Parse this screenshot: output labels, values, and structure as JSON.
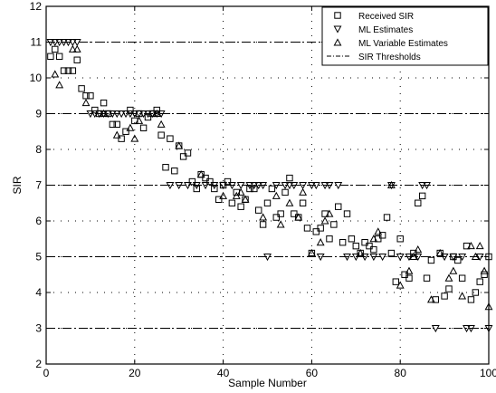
{
  "chart_data": {
    "type": "scatter",
    "xlabel": "Sample Number",
    "ylabel": "SIR",
    "xlim": [
      0,
      100
    ],
    "ylim": [
      2,
      12
    ],
    "xticks": [
      0,
      20,
      40,
      60,
      80,
      100
    ],
    "yticks": [
      2,
      3,
      4,
      5,
      6,
      7,
      8,
      9,
      10,
      11,
      12
    ],
    "grid": "dotted",
    "legend_position": "top-right",
    "legend": [
      {
        "label": "Received SIR",
        "marker": "square"
      },
      {
        "label": "ML Estimates",
        "marker": "triangle-down"
      },
      {
        "label": "ML Variable Estimates",
        "marker": "triangle-up"
      },
      {
        "label": "SIR Thresholds",
        "marker": "dashdot-line"
      }
    ],
    "thresholds": [
      3,
      5,
      7,
      9,
      11
    ],
    "series": [
      {
        "name": "Received SIR",
        "marker": "square",
        "x": [
          1,
          2,
          3,
          4,
          5,
          6,
          7,
          8,
          9,
          10,
          11,
          12,
          13,
          14,
          15,
          16,
          17,
          18,
          19,
          20,
          21,
          22,
          23,
          24,
          25,
          26,
          27,
          28,
          29,
          30,
          31,
          32,
          33,
          34,
          35,
          36,
          37,
          38,
          39,
          40,
          41,
          42,
          43,
          44,
          45,
          46,
          47,
          48,
          49,
          50,
          51,
          52,
          53,
          54,
          55,
          56,
          57,
          58,
          59,
          60,
          61,
          62,
          63,
          64,
          65,
          66,
          67,
          68,
          69,
          70,
          71,
          72,
          73,
          74,
          75,
          76,
          77,
          78,
          79,
          80,
          81,
          82,
          83,
          84,
          85,
          86,
          87,
          88,
          89,
          90,
          91,
          92,
          93,
          94,
          95,
          96,
          97,
          98,
          99,
          100
        ],
        "y": [
          10.6,
          10.8,
          10.6,
          10.2,
          10.2,
          10.2,
          10.5,
          9.7,
          9.5,
          9.5,
          9.1,
          9,
          9.3,
          9,
          8.7,
          8.7,
          8.3,
          8.5,
          9.1,
          8.8,
          9,
          8.6,
          8.9,
          9,
          9.1,
          8.4,
          7.5,
          8.3,
          7.4,
          8.1,
          7.8,
          7.9,
          7.1,
          6.9,
          7.3,
          7.2,
          7.1,
          6.9,
          6.6,
          7,
          7.1,
          6.5,
          6.8,
          6.4,
          6.6,
          6.9,
          6.9,
          6.3,
          5.9,
          6.5,
          6.9,
          6.1,
          6.2,
          6.8,
          7.2,
          6.2,
          6.1,
          6.5,
          5.8,
          5.1,
          5.7,
          5.8,
          6.2,
          5.5,
          5.9,
          6.4,
          5.4,
          6.2,
          5.5,
          5.3,
          5.1,
          5.4,
          5.3,
          5.2,
          5.5,
          5.6,
          6.1,
          5.1,
          4.3,
          5.5,
          4.5,
          4.4,
          5.1,
          6.5,
          6.7,
          4.4,
          4.9,
          3.8,
          5.1,
          3.9,
          4.1,
          5,
          4.9,
          4.4,
          5.3,
          3.8,
          4,
          4.3,
          4.5,
          5
        ]
      },
      {
        "name": "ML Estimates",
        "marker": "triangle-down",
        "x": [
          1,
          2,
          3,
          4,
          5,
          6,
          7,
          10,
          11,
          12,
          13,
          14,
          15,
          16,
          17,
          18,
          19,
          20,
          21,
          22,
          23,
          24,
          25,
          26,
          28,
          30,
          32,
          34,
          36,
          38,
          40,
          42,
          44,
          46,
          47,
          48,
          49,
          50,
          52,
          54,
          55,
          56,
          58,
          60,
          61,
          62,
          63,
          64,
          66,
          68,
          70,
          72,
          74,
          76,
          78,
          80,
          82,
          84,
          85,
          86,
          88,
          90,
          92,
          94,
          95,
          96,
          98,
          100
        ],
        "y": [
          11,
          11,
          11,
          11,
          11,
          11,
          11,
          9,
          9,
          9,
          9,
          9,
          9,
          9,
          9,
          9,
          9,
          9,
          9,
          9,
          9,
          9,
          9,
          9,
          7,
          7,
          7,
          7,
          7,
          7,
          7,
          7,
          7,
          7,
          7,
          7,
          7,
          5,
          7,
          7,
          7,
          7,
          7,
          7,
          7,
          5,
          7,
          7,
          7,
          5,
          5,
          5,
          5,
          5,
          7,
          5,
          5,
          5,
          7,
          7,
          3,
          5,
          5,
          5,
          3,
          3,
          5,
          3
        ]
      },
      {
        "name": "ML Variable Estimates",
        "marker": "triangle-up",
        "x": [
          2,
          3,
          6,
          7,
          9,
          13,
          16,
          19,
          20,
          21,
          25,
          26,
          30,
          35,
          40,
          43,
          44,
          45,
          49,
          52,
          53,
          55,
          57,
          58,
          60,
          62,
          63,
          64,
          71,
          74,
          75,
          78,
          80,
          82,
          83,
          84,
          87,
          89,
          91,
          92,
          94,
          96,
          97,
          98,
          99,
          100
        ],
        "y": [
          10.1,
          9.8,
          10.8,
          10.8,
          9.3,
          9,
          8.4,
          8.6,
          8.3,
          8.8,
          9,
          8.7,
          8.1,
          7.3,
          6.7,
          6.7,
          6.8,
          6.6,
          6.1,
          6.7,
          5.9,
          6.5,
          6.1,
          6.8,
          5.1,
          5.4,
          6,
          6.2,
          5.1,
          5.5,
          5.7,
          7,
          4.2,
          4.6,
          5,
          5.2,
          3.8,
          5.1,
          4.4,
          4.6,
          3.9,
          5.3,
          5,
          5.3,
          4.6,
          3.6
        ]
      }
    ]
  }
}
